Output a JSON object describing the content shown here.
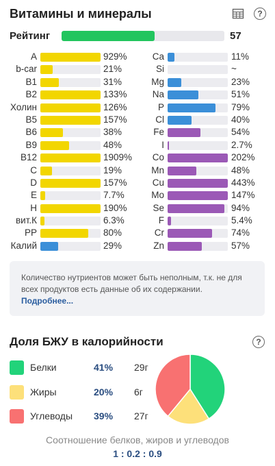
{
  "header": {
    "title": "Витамины и минералы",
    "table_icon": "table-icon",
    "help_icon": "help-icon",
    "help_glyph": "?"
  },
  "rating": {
    "label": "Рейтинг",
    "value": "57",
    "fraction": 0.57,
    "color": "#22c55e"
  },
  "colors": {
    "vitamin": "#f2d600",
    "mineral_blue": "#3b8fd8",
    "mineral_purple": "#9b59b6",
    "track": "#ececf0"
  },
  "vitamins": [
    {
      "name": "A",
      "pct": "929%",
      "fill": 1.0
    },
    {
      "name": "b-car",
      "pct": "21%",
      "fill": 0.21
    },
    {
      "name": "B1",
      "pct": "31%",
      "fill": 0.31
    },
    {
      "name": "B2",
      "pct": "133%",
      "fill": 1.0
    },
    {
      "name": "Холин",
      "pct": "126%",
      "fill": 1.0
    },
    {
      "name": "B5",
      "pct": "157%",
      "fill": 1.0
    },
    {
      "name": "B6",
      "pct": "38%",
      "fill": 0.38
    },
    {
      "name": "B9",
      "pct": "48%",
      "fill": 0.48
    },
    {
      "name": "B12",
      "pct": "1909%",
      "fill": 1.0
    },
    {
      "name": "C",
      "pct": "19%",
      "fill": 0.19
    },
    {
      "name": "D",
      "pct": "157%",
      "fill": 1.0
    },
    {
      "name": "E",
      "pct": "7.7%",
      "fill": 0.077
    },
    {
      "name": "H",
      "pct": "190%",
      "fill": 1.0
    },
    {
      "name": "вит.К",
      "pct": "6.3%",
      "fill": 0.063
    },
    {
      "name": "PP",
      "pct": "80%",
      "fill": 0.8
    },
    {
      "name": "Калий",
      "pct": "29%",
      "fill": 0.29,
      "color": "#3b8fd8"
    }
  ],
  "minerals": [
    {
      "name": "Ca",
      "pct": "11%",
      "fill": 0.11,
      "color": "#3b8fd8"
    },
    {
      "name": "Si",
      "pct": "~",
      "fill": 0,
      "color": "#3b8fd8"
    },
    {
      "name": "Mg",
      "pct": "23%",
      "fill": 0.23,
      "color": "#3b8fd8"
    },
    {
      "name": "Na",
      "pct": "51%",
      "fill": 0.51,
      "color": "#3b8fd8"
    },
    {
      "name": "P",
      "pct": "79%",
      "fill": 0.79,
      "color": "#3b8fd8"
    },
    {
      "name": "Cl",
      "pct": "40%",
      "fill": 0.4,
      "color": "#3b8fd8"
    },
    {
      "name": "Fe",
      "pct": "54%",
      "fill": 0.54,
      "color": "#9b59b6"
    },
    {
      "name": "I",
      "pct": "2.7%",
      "fill": 0.027,
      "color": "#9b59b6"
    },
    {
      "name": "Co",
      "pct": "202%",
      "fill": 1.0,
      "color": "#9b59b6"
    },
    {
      "name": "Mn",
      "pct": "48%",
      "fill": 0.48,
      "color": "#9b59b6"
    },
    {
      "name": "Cu",
      "pct": "443%",
      "fill": 1.0,
      "color": "#9b59b6"
    },
    {
      "name": "Mo",
      "pct": "147%",
      "fill": 1.0,
      "color": "#9b59b6"
    },
    {
      "name": "Se",
      "pct": "94%",
      "fill": 0.94,
      "color": "#9b59b6"
    },
    {
      "name": "F",
      "pct": "5.4%",
      "fill": 0.054,
      "color": "#9b59b6"
    },
    {
      "name": "Cr",
      "pct": "74%",
      "fill": 0.74,
      "color": "#9b59b6"
    },
    {
      "name": "Zn",
      "pct": "57%",
      "fill": 0.57,
      "color": "#9b59b6"
    }
  ],
  "note": {
    "text": "Количество нутриентов может быть неполным, т.к. не для всех продуктов есть данные об их содержании.",
    "link": "Подробнее..."
  },
  "bju": {
    "title": "Доля БЖУ в калорийности",
    "help_icon": "help-icon",
    "macros": [
      {
        "name": "Белки",
        "pct": "41%",
        "grams": "29г",
        "color": "#22d37a",
        "share": 0.41
      },
      {
        "name": "Жиры",
        "pct": "20%",
        "grams": "6г",
        "color": "#fde07a",
        "share": 0.2
      },
      {
        "name": "Углеводы",
        "pct": "39%",
        "grams": "27г",
        "color": "#f87171",
        "share": 0.39
      }
    ],
    "ratio_caption": "Соотношение белков, жиров и углеводов",
    "ratio_value": "1 : 0.2 : 0.9"
  }
}
